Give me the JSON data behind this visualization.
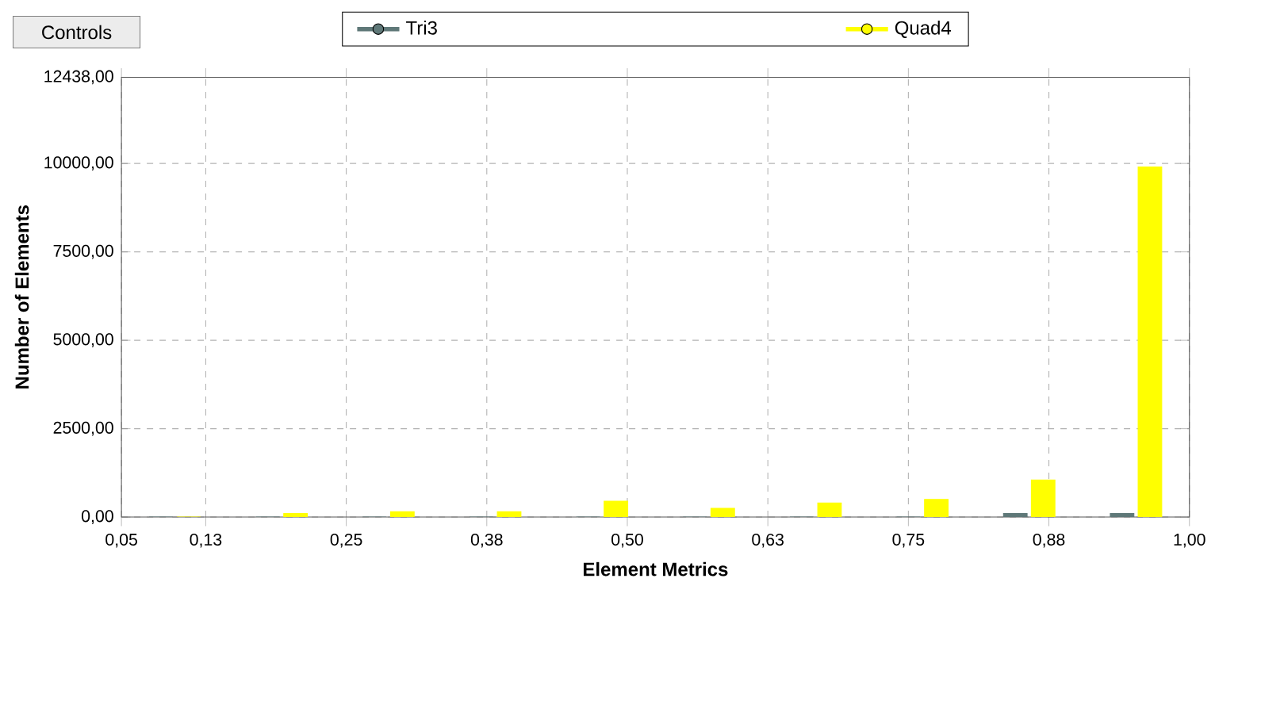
{
  "chart_data": {
    "type": "bar",
    "xlabel": "Element Metrics",
    "ylabel": "Number of Elements",
    "annotations": [
      "Controls"
    ],
    "x": [
      0.0975,
      0.1925,
      0.2875,
      0.3825,
      0.4775,
      0.5725,
      0.6675,
      0.7625,
      0.8575,
      0.9525
    ],
    "series": [
      {
        "name": "Tri3",
        "color": "#5f7878",
        "values": [
          0,
          0,
          0,
          0,
          0,
          0,
          0,
          0,
          100,
          100
        ]
      },
      {
        "name": "Quad4",
        "color": "#ffff00",
        "values": [
          0,
          100,
          150,
          150,
          450,
          250,
          400,
          500,
          1050,
          9900
        ]
      }
    ],
    "xlim": [
      0.05,
      1.0
    ],
    "xticks": [
      {
        "value": 0.05,
        "label": "0,05"
      },
      {
        "value": 0.125,
        "label": "0,13"
      },
      {
        "value": 0.25,
        "label": "0,25"
      },
      {
        "value": 0.375,
        "label": "0,38"
      },
      {
        "value": 0.5,
        "label": "0,50"
      },
      {
        "value": 0.625,
        "label": "0,63"
      },
      {
        "value": 0.75,
        "label": "0,75"
      },
      {
        "value": 0.875,
        "label": "0,88"
      },
      {
        "value": 1.0,
        "label": "1,00"
      }
    ],
    "ylim": [
      0,
      12438
    ],
    "yticks": [
      {
        "value": 0,
        "label": "0,00"
      },
      {
        "value": 2500,
        "label": "2500,00"
      },
      {
        "value": 5000,
        "label": "5000,00"
      },
      {
        "value": 7500,
        "label": "7500,00"
      },
      {
        "value": 10000,
        "label": "10000,00"
      },
      {
        "value": 12438,
        "label": "12438,00"
      }
    ],
    "grid": true,
    "legend": "top"
  }
}
